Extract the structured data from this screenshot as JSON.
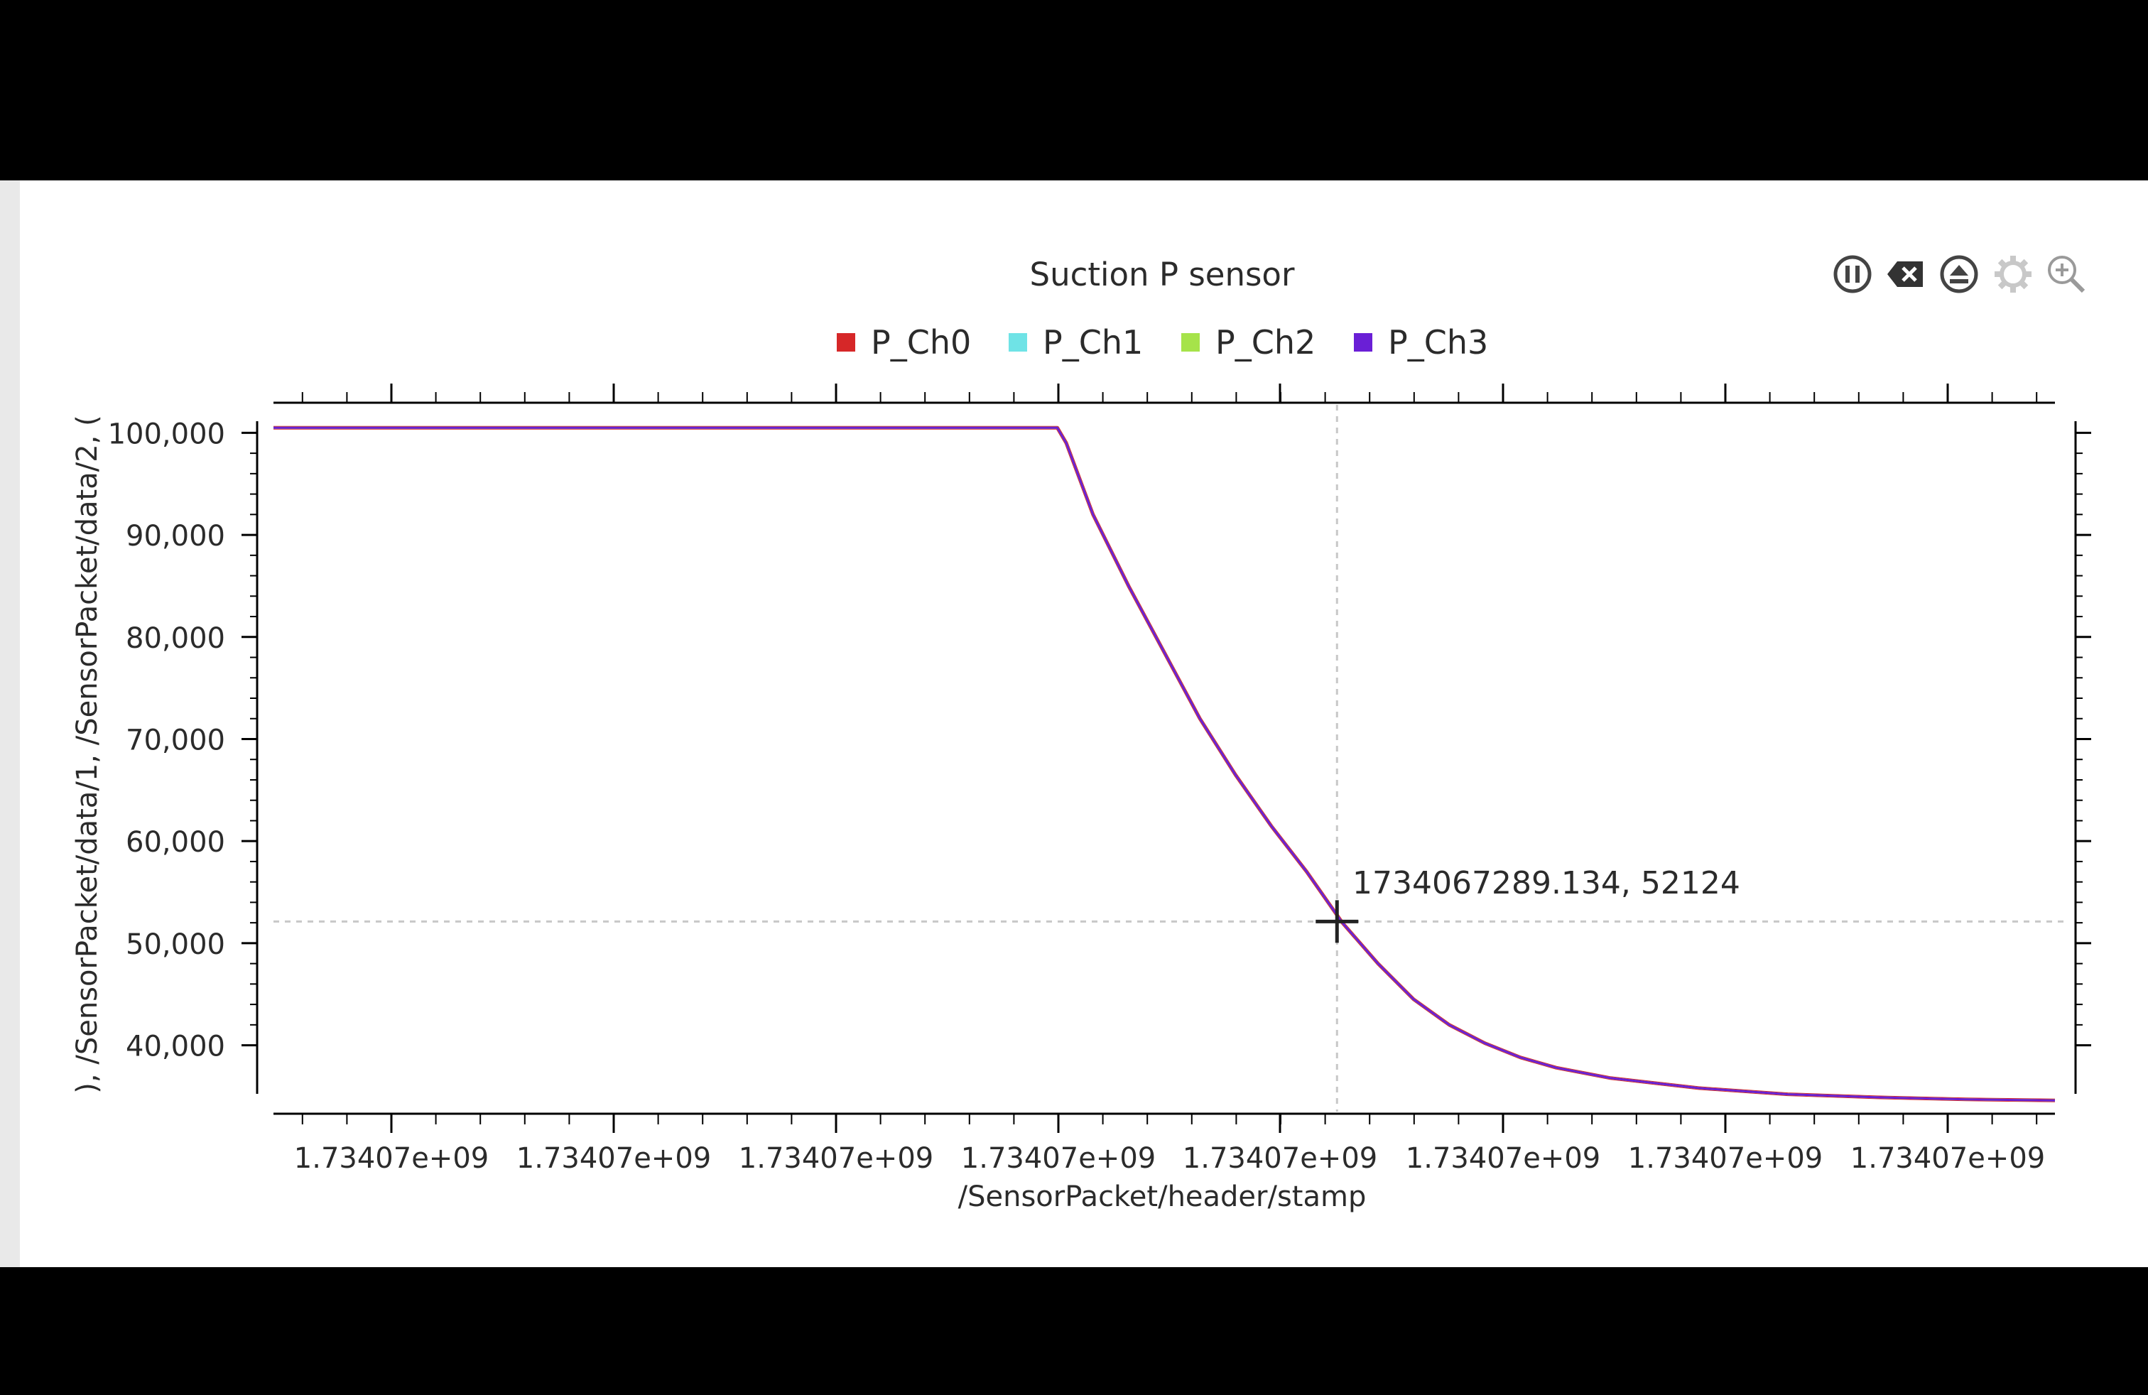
{
  "toolbar": {
    "buttons": [
      {
        "name": "pause-icon"
      },
      {
        "name": "clear-icon"
      },
      {
        "name": "eject-icon"
      },
      {
        "name": "settings-gear-icon"
      },
      {
        "name": "zoom-in-icon"
      }
    ]
  },
  "cursor_readout": "1734067289.134, 52124",
  "colors": {
    "P_Ch0": "#d62728",
    "P_Ch1": "#6fe3e6",
    "P_Ch2": "#a6e34a",
    "P_Ch3": "#6a1fd6",
    "grid_dash": "#c8c8c8",
    "axis": "#000000"
  },
  "chart_data": {
    "type": "line",
    "title": "Suction P sensor",
    "xlabel": "/SensorPacket/header/stamp",
    "ylabel": "), /SensorPacket/data/1, /SensorPacket/data/2, (",
    "legend_position": "top-center",
    "grid": false,
    "ylim": [
      33500,
      101000
    ],
    "y_ticks": [
      100000,
      90000,
      80000,
      70000,
      60000,
      50000,
      40000
    ],
    "y_tick_labels": [
      "100,000",
      "90,000",
      "80,000",
      "70,000",
      "60,000",
      "50,000",
      "40,000"
    ],
    "x_tick_labels": [
      "1.73407e+09",
      "1.73407e+09",
      "1.73407e+09",
      "1.73407e+09",
      "1.73407e+09",
      "1.73407e+09",
      "1.73407e+09",
      "1.73407e+09"
    ],
    "series": [
      {
        "name": "P_Ch0",
        "color": "#d62728"
      },
      {
        "name": "P_Ch1",
        "color": "#6fe3e6"
      },
      {
        "name": "P_Ch2",
        "color": "#a6e34a"
      },
      {
        "name": "P_Ch3",
        "color": "#6a1fd6"
      }
    ],
    "curve_points_relative": [
      [
        0.0,
        100500
      ],
      [
        0.44,
        100500
      ],
      [
        0.445,
        99000
      ],
      [
        0.46,
        92000
      ],
      [
        0.48,
        85000
      ],
      [
        0.5,
        78500
      ],
      [
        0.52,
        72000
      ],
      [
        0.54,
        66500
      ],
      [
        0.56,
        61500
      ],
      [
        0.58,
        57000
      ],
      [
        0.6,
        52000
      ],
      [
        0.62,
        48000
      ],
      [
        0.64,
        44500
      ],
      [
        0.66,
        42000
      ],
      [
        0.68,
        40200
      ],
      [
        0.7,
        38800
      ],
      [
        0.72,
        37800
      ],
      [
        0.75,
        36800
      ],
      [
        0.8,
        35800
      ],
      [
        0.85,
        35200
      ],
      [
        0.9,
        34900
      ],
      [
        0.95,
        34700
      ],
      [
        1.0,
        34600
      ]
    ],
    "crosshair": {
      "x_relative": 0.597,
      "y": 52124
    }
  }
}
